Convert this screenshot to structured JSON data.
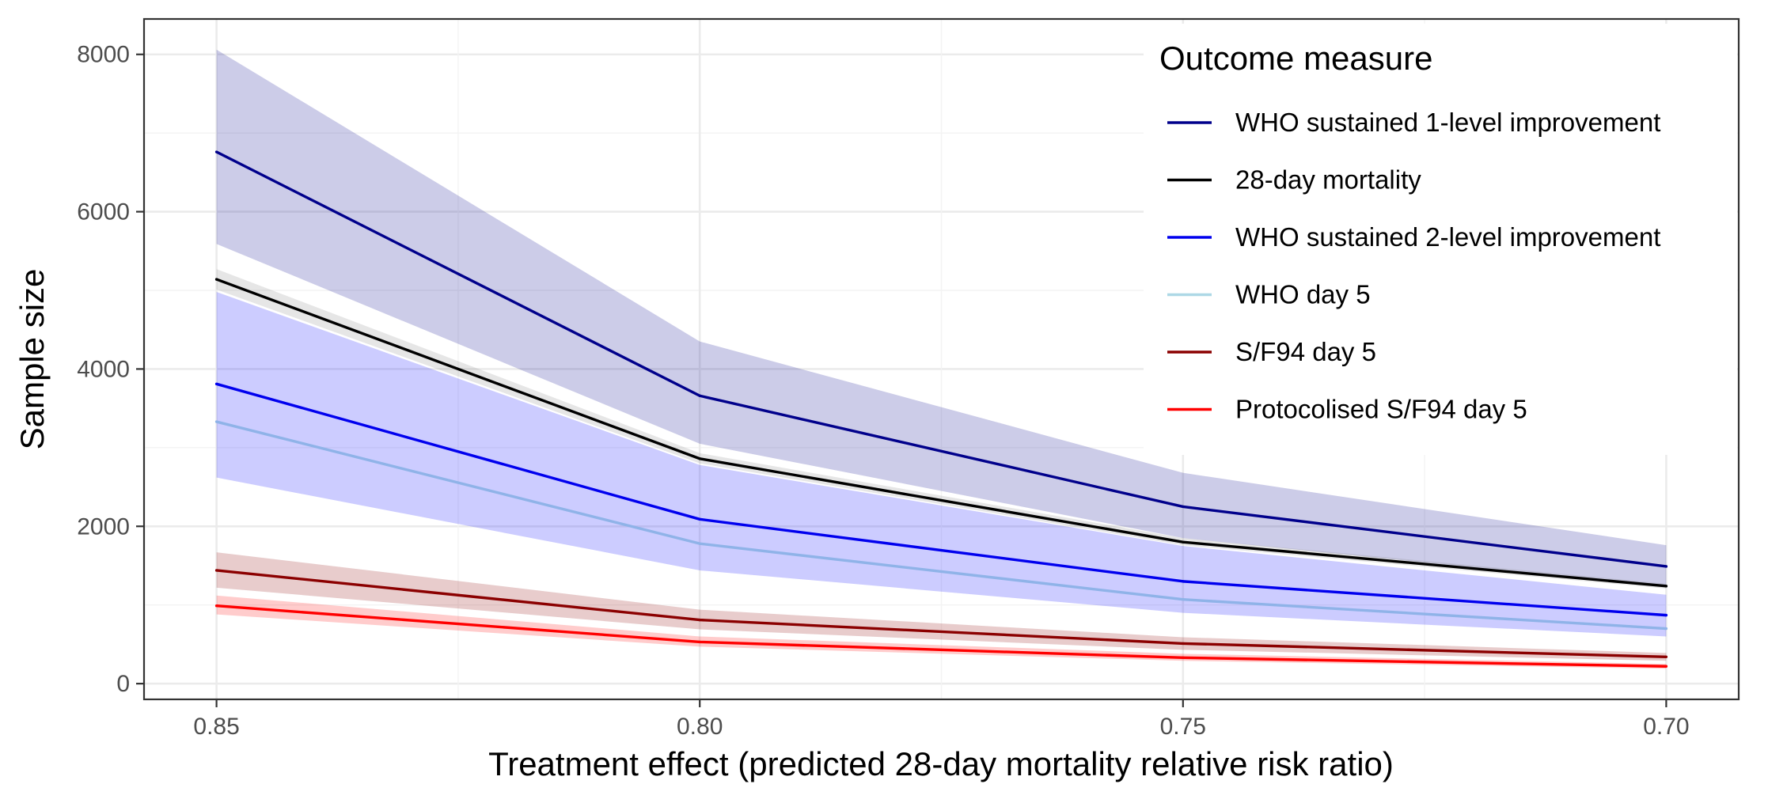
{
  "chart_data": {
    "type": "line",
    "xlabel": "Treatment effect (predicted 28-day mortality relative risk ratio)",
    "ylabel": "Sample size",
    "x": [
      0.85,
      0.8,
      0.75,
      0.7
    ],
    "x_tick_labels": [
      "0.85",
      "0.80",
      "0.75",
      "0.70"
    ],
    "x_reversed": true,
    "xlim": [
      0.8575,
      0.6925
    ],
    "ylim": [
      -200,
      8450
    ],
    "y_ticks": [
      0,
      2000,
      4000,
      6000,
      8000
    ],
    "y_tick_labels": [
      "0",
      "2000",
      "4000",
      "6000",
      "8000"
    ],
    "grid": true,
    "legend": {
      "title": "Outcome measure",
      "placement": "top-right"
    },
    "series": [
      {
        "name": "WHO sustained 1-level improvement",
        "color": "#00008b",
        "ribbon_color": "#00008b",
        "values": [
          6760,
          3660,
          2250,
          1490
        ],
        "lower": [
          5590,
          3050,
          1850,
          1230
        ],
        "upper": [
          8060,
          4350,
          2680,
          1760
        ]
      },
      {
        "name": "28-day mortality",
        "color": "#000000",
        "ribbon_color": "#808080",
        "values": [
          5140,
          2860,
          1800,
          1240
        ],
        "lower": [
          5010,
          2800,
          1760,
          1210
        ],
        "upper": [
          5270,
          2930,
          1850,
          1270
        ]
      },
      {
        "name": "WHO sustained 2-level improvement",
        "color": "#0000ee",
        "ribbon_color": "#0000ff",
        "values": [
          3810,
          2090,
          1300,
          870
        ],
        "lower": [
          2620,
          1440,
          900,
          600
        ],
        "upper": [
          4980,
          2780,
          1750,
          1130
        ]
      },
      {
        "name": "WHO day 5",
        "color": "#add8e6",
        "legend_color": "#add8e6",
        "line_color_over_ribbon": "#8fb3e8",
        "values": [
          3330,
          1780,
          1070,
          700
        ],
        "lower": [
          3330,
          1780,
          1070,
          700
        ],
        "upper": [
          3330,
          1780,
          1070,
          700
        ]
      },
      {
        "name": "S/F94 day 5",
        "color": "#8b0000",
        "ribbon_color": "#8b0000",
        "values": [
          1440,
          810,
          510,
          340
        ],
        "lower": [
          1220,
          690,
          430,
          290
        ],
        "upper": [
          1670,
          940,
          590,
          390
        ]
      },
      {
        "name": "Protocolised S/F94 day 5",
        "color": "#ff0000",
        "ribbon_color": "#ff0000",
        "values": [
          990,
          530,
          330,
          220
        ],
        "lower": [
          880,
          470,
          290,
          190
        ],
        "upper": [
          1120,
          600,
          380,
          250
        ]
      }
    ]
  }
}
